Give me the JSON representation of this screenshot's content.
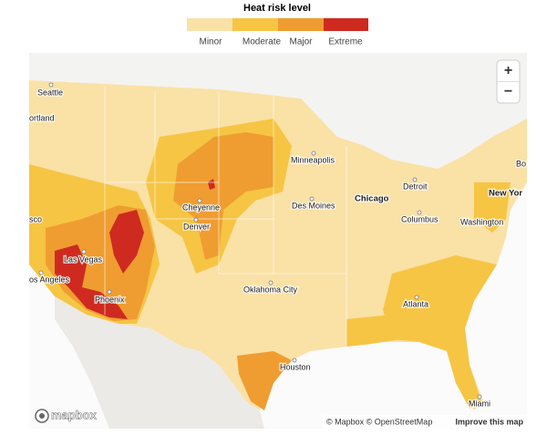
{
  "legend": {
    "title": "Heat risk level",
    "items": [
      {
        "label": "Minor",
        "color": "#fae1a6"
      },
      {
        "label": "Moderate",
        "color": "#f6c544"
      },
      {
        "label": "Major",
        "color": "#ef9d31"
      },
      {
        "label": "Extreme",
        "color": "#cf2a1f"
      }
    ]
  },
  "map": {
    "cities": [
      "Seattle",
      "ortland",
      "sco",
      "os Angeles",
      "Las Vegas",
      "Phoenix",
      "Cheyenne",
      "Denver",
      "Minneapolis",
      "Des Moines",
      "Chicago",
      "Detroit",
      "New Yor",
      "Bo",
      "Columbus",
      "Washington",
      "Oklahoma City",
      "Atlanta",
      "Houston",
      "Miami"
    ],
    "zoom": [
      "+",
      "−"
    ],
    "logo": "mapbox",
    "attribution": "© Mapbox © OpenStreetMap",
    "improve": "Improve this map"
  }
}
